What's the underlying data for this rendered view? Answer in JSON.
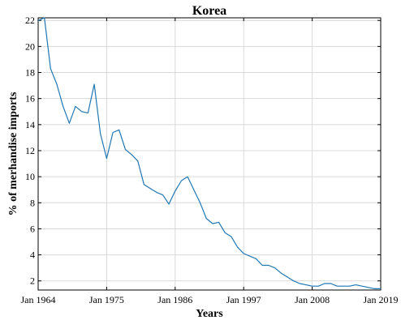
{
  "chart_data": {
    "type": "line",
    "title": "Korea",
    "xlabel": "Years",
    "ylabel": "% of merhandise imports",
    "xlim": [
      1964,
      2019
    ],
    "ylim": [
      1.3,
      22.2
    ],
    "grid": true,
    "x_tick_values": [
      1964,
      1975,
      1986,
      1997,
      2008,
      2019
    ],
    "x_tick_labels": [
      "Jan 1964",
      "Jan 1975",
      "Jan 1986",
      "Jan 1997",
      "Jan 2008",
      "Jan 2019"
    ],
    "y_ticks": [
      2,
      4,
      6,
      8,
      10,
      12,
      14,
      16,
      18,
      20,
      22
    ],
    "series": [
      {
        "color": "#1f77b4",
        "x": [
          1964,
          1965,
          1966,
          1967,
          1968,
          1969,
          1970,
          1971,
          1972,
          1973,
          1974,
          1975,
          1976,
          1977,
          1978,
          1979,
          1980,
          1981,
          1982,
          1983,
          1984,
          1985,
          1986,
          1987,
          1988,
          1989,
          1990,
          1991,
          1992,
          1993,
          1994,
          1995,
          1996,
          1997,
          1998,
          1999,
          2000,
          2001,
          2002,
          2003,
          2004,
          2005,
          2006,
          2007,
          2008,
          2009,
          2010,
          2011,
          2012,
          2013,
          2014,
          2015,
          2016,
          2017,
          2018,
          2019
        ],
        "y": [
          22.0,
          22.2,
          18.3,
          17.1,
          15.4,
          14.1,
          15.4,
          15.0,
          14.9,
          17.1,
          13.3,
          11.4,
          13.4,
          13.6,
          12.1,
          11.7,
          11.2,
          9.4,
          9.1,
          8.8,
          8.6,
          7.9,
          8.9,
          9.7,
          10.0,
          9.0,
          8.0,
          6.8,
          6.4,
          6.5,
          5.7,
          5.4,
          4.6,
          4.1,
          3.9,
          3.7,
          3.2,
          3.2,
          3.0,
          2.6,
          2.3,
          2.0,
          1.8,
          1.7,
          1.6,
          1.6,
          1.8,
          1.8,
          1.6,
          1.6,
          1.6,
          1.7,
          1.6,
          1.5,
          1.4,
          1.4
        ]
      }
    ]
  }
}
